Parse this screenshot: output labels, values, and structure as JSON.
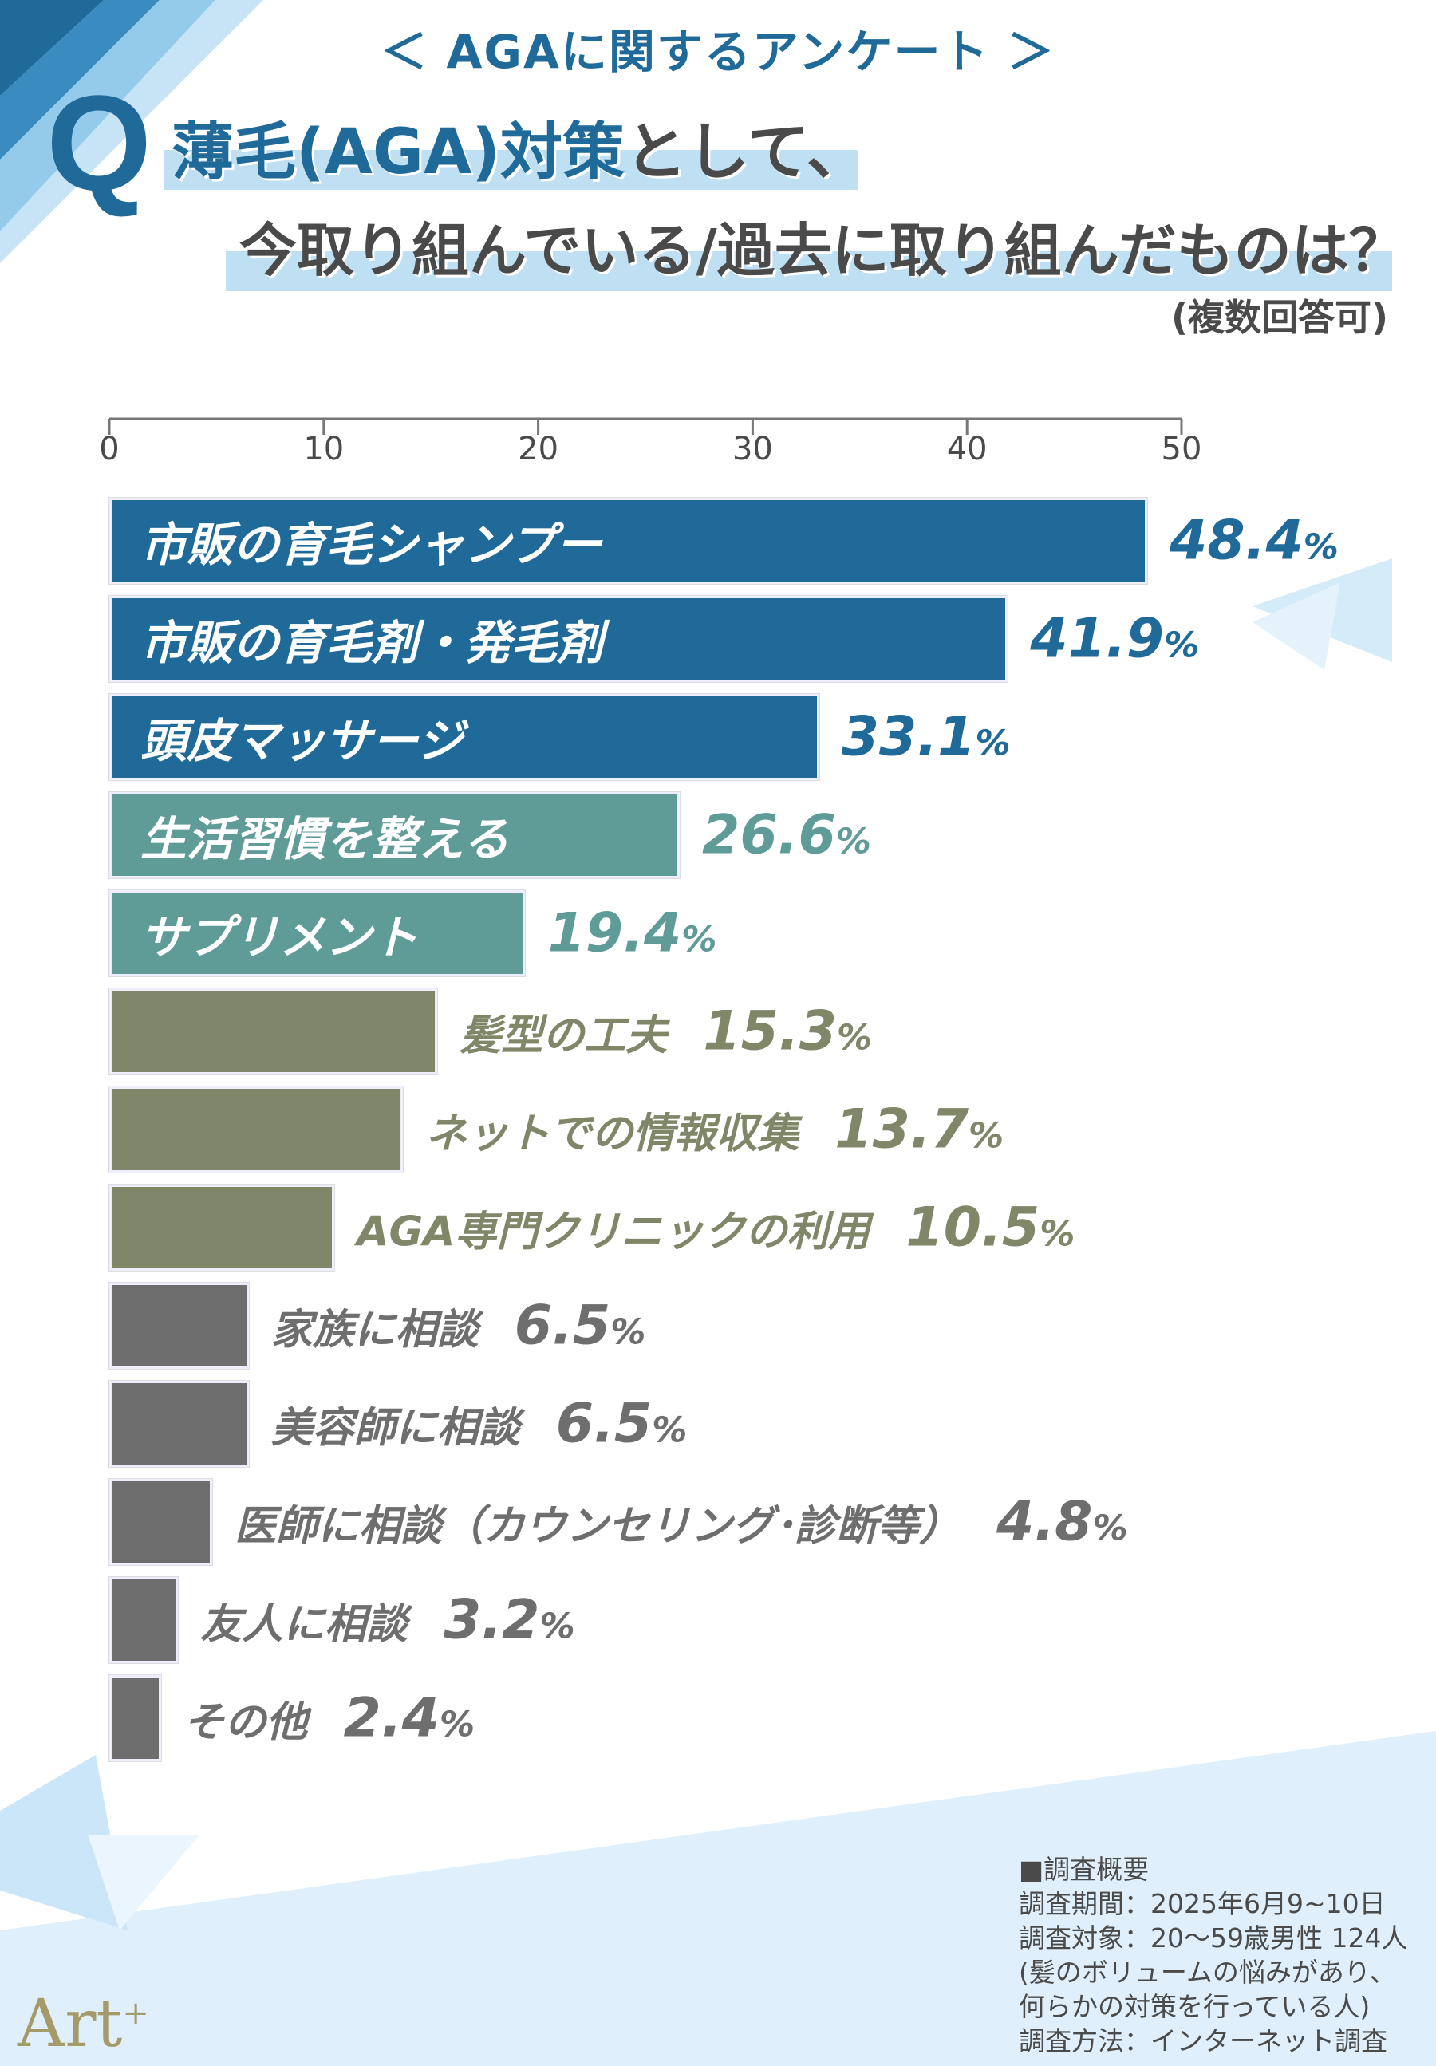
{
  "header": {
    "survey_title": "＜ AGAに関するアンケート ＞",
    "q_letter": "Q",
    "question_line1_highlight": "薄毛(AGA)対策",
    "question_line1_rest": "として、",
    "question_line2": "今取り組んでいる/過去に取り組んだものは？",
    "note": "(複数回答可)"
  },
  "colors": {
    "dark_blue": "#1f6a98",
    "teal": "#5f9b97",
    "olive": "#7f8768",
    "gray": "#6e6e6e",
    "band": "#dff0fc"
  },
  "chart_data": {
    "type": "bar",
    "orientation": "horizontal",
    "xlim": [
      0,
      50
    ],
    "ticks": [
      "0",
      "10",
      "20",
      "30",
      "40",
      "50"
    ],
    "unit": "%",
    "categories": [
      "市販の育毛シャンプー",
      "市販の育毛剤・発毛剤",
      "頭皮マッサージ",
      "生活習慣を整える",
      "サプリメント",
      "髪型の工夫",
      "ネットでの情報収集",
      "AGA専門クリニックの利用",
      "家族に相談",
      "美容師に相談",
      "医師に相談（カウンセリング･診断等）",
      "友人に相談",
      "その他"
    ],
    "values": [
      48.4,
      41.9,
      33.1,
      26.6,
      19.4,
      15.3,
      13.7,
      10.5,
      6.5,
      6.5,
      4.8,
      3.2,
      2.4
    ],
    "value_labels": [
      "48.4",
      "41.9",
      "33.1",
      "26.6",
      "19.4",
      "15.3",
      "13.7",
      "10.5",
      "6.5",
      "6.5",
      "4.8",
      "3.2",
      "2.4"
    ],
    "bar_colors": [
      "dark_blue",
      "dark_blue",
      "dark_blue",
      "teal",
      "teal",
      "olive",
      "olive",
      "olive",
      "gray",
      "gray",
      "gray",
      "gray",
      "gray"
    ]
  },
  "summary": {
    "heading": "■調査概要",
    "lines": [
      "調査期間：2025年6月9~10日",
      "調査対象：20〜59歳男性 124人",
      "(髪のボリュームの悩みがあり、",
      "何らかの対策を行っている人)",
      "調査方法：インターネット調査"
    ]
  },
  "logo": {
    "text": "Art",
    "sup": "+"
  }
}
